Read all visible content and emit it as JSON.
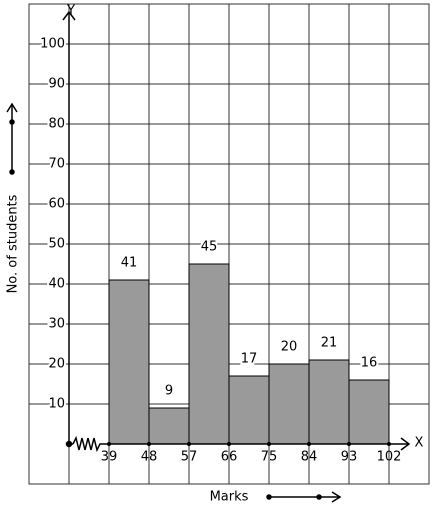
{
  "chart_data": {
    "type": "histogram",
    "bins": [
      39,
      48,
      57,
      66,
      75,
      84,
      93,
      102
    ],
    "values": [
      41,
      9,
      45,
      17,
      20,
      21,
      16
    ],
    "color": "#9a9a9a",
    "ylim": [
      0,
      110
    ],
    "yticks": [
      10,
      20,
      30,
      40,
      50,
      60,
      70,
      80,
      90,
      100
    ],
    "grid": true,
    "x_axis_name": "X",
    "y_axis_name": "Y",
    "xlabel": "Marks",
    "ylabel": "No. of students"
  }
}
